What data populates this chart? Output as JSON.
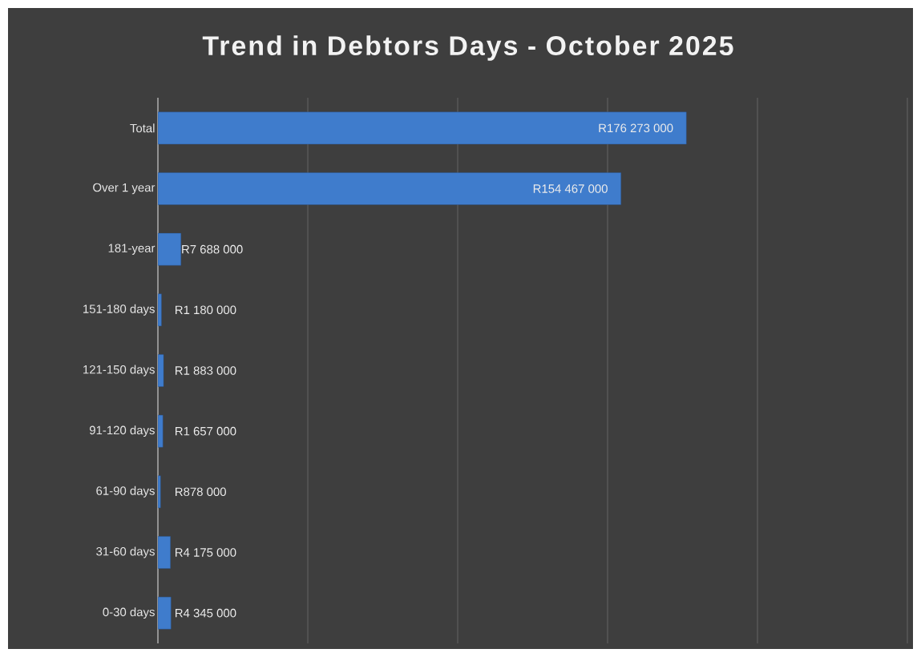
{
  "chart_data": {
    "type": "bar",
    "orientation": "horizontal",
    "title": "Trend in Debtors Days - October 2025",
    "categories": [
      "Total",
      "Over 1 year",
      "181-year",
      "151-180 days",
      "121-150 days",
      "91-120 days",
      "61-90 days",
      "31-60 days",
      "0-30 days"
    ],
    "values": [
      176273000,
      154467000,
      7688000,
      1180000,
      1883000,
      1657000,
      878000,
      4175000,
      4345000
    ],
    "value_labels": [
      "R176 273 000",
      "R154 467 000",
      "R7 688 000",
      "R1 180 000",
      "R1 883 000",
      "R1 657 000",
      "R878 000",
      "R4 175 000",
      "R4 345 000"
    ],
    "color": "#3f7ccc",
    "xlim": [
      0,
      250000000
    ],
    "xticks": [
      {
        "value": 0,
        "label": null
      },
      {
        "value": 50000000,
        "label": null
      },
      {
        "value": 100000000,
        "label": null
      },
      {
        "value": 150000000,
        "label": null
      },
      {
        "value": 200000000,
        "label": null
      },
      {
        "value": 250000000,
        "label": null
      }
    ],
    "grid": "x"
  }
}
